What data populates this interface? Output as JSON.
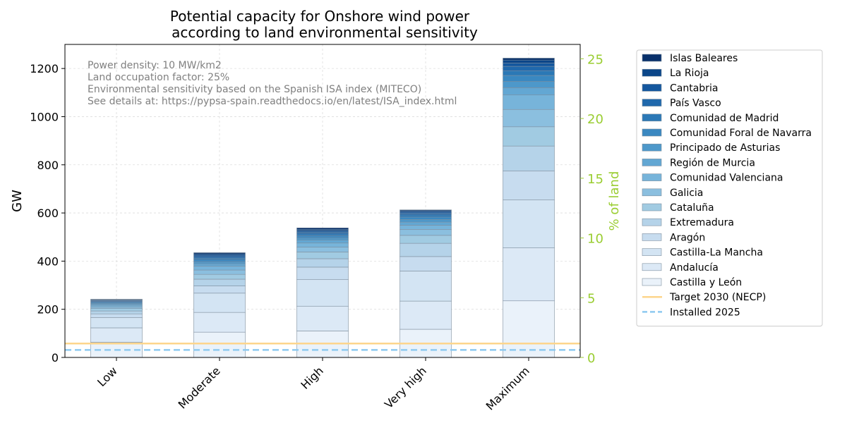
{
  "chart_data": {
    "type": "bar",
    "stacked": true,
    "title_line1": "Potential capacity for Onshore wind power",
    "title_line2": "according to land environmental sensitivity",
    "ylabel": "GW",
    "y2label": "% of land",
    "ylim": [
      0,
      1300
    ],
    "y2lim": [
      0,
      26.2
    ],
    "yticks": [
      "0",
      "200",
      "400",
      "600",
      "800",
      "1000",
      "1200"
    ],
    "y2ticks": [
      "0",
      "5",
      "10",
      "15",
      "20",
      "25"
    ],
    "grid": true,
    "legend_position": "outside-right",
    "categories": [
      "Low",
      "Moderate",
      "High",
      "Very high",
      "Maximum"
    ],
    "annotation": [
      "Power density: 10 MW/km2",
      "Land occupation factor: 25%",
      "Environmental sensitivity based on the Spanish ISA index (MITECO)",
      "See details at: https://pypsa-spain.readthedocs.io/en/latest/ISA_index.html"
    ],
    "series": [
      {
        "name": "Castilla y León",
        "color": "#eaf2fa",
        "values": [
          63,
          105,
          110,
          117,
          235
        ]
      },
      {
        "name": "Andalucía",
        "color": "#dce9f6",
        "values": [
          60,
          82,
          103,
          117,
          220
        ]
      },
      {
        "name": "Castilla-La Mancha",
        "color": "#d3e4f3",
        "values": [
          43,
          80,
          110,
          125,
          200
        ]
      },
      {
        "name": "Aragón",
        "color": "#c7dcef",
        "values": [
          15,
          30,
          52,
          60,
          120
        ]
      },
      {
        "name": "Extremadura",
        "color": "#b5d3e9",
        "values": [
          12,
          28,
          35,
          55,
          103
        ]
      },
      {
        "name": "Cataluña",
        "color": "#a1cbe2",
        "values": [
          10,
          20,
          28,
          33,
          80
        ]
      },
      {
        "name": "Galicia",
        "color": "#8bbfdf",
        "values": [
          7,
          18,
          20,
          25,
          72
        ]
      },
      {
        "name": "Comunidad Valenciana",
        "color": "#77b4da",
        "values": [
          6,
          16,
          17,
          17,
          60
        ]
      },
      {
        "name": "Región de Murcia",
        "color": "#63a7d3",
        "values": [
          5,
          10,
          12,
          13,
          30
        ]
      },
      {
        "name": "Principado de Asturias",
        "color": "#4d98ca",
        "values": [
          4,
          8,
          9,
          11,
          26
        ]
      },
      {
        "name": "Comunidad Foral de Navarra",
        "color": "#3a88c1",
        "values": [
          4,
          8,
          9,
          10,
          25
        ]
      },
      {
        "name": "Comunidad de Madrid",
        "color": "#2b78b6",
        "values": [
          3,
          7,
          8,
          9,
          20
        ]
      },
      {
        "name": "País Vasco",
        "color": "#1f68ac",
        "values": [
          3,
          6,
          7,
          7,
          18
        ]
      },
      {
        "name": "Cantabria",
        "color": "#14579e",
        "values": [
          3,
          6,
          6,
          6,
          14
        ]
      },
      {
        "name": "La Rioja",
        "color": "#0b4689",
        "values": [
          2,
          6,
          6,
          5,
          12
        ]
      },
      {
        "name": "Islas Baleares",
        "color": "#08306b",
        "values": [
          2,
          5,
          6,
          3,
          8
        ]
      }
    ],
    "lines": [
      {
        "name": "Target 2030 (NECP)",
        "value": 58,
        "color": "#fdd58c",
        "style": "solid"
      },
      {
        "name": "Installed 2025",
        "value": 31,
        "color": "#8ecaf0",
        "style": "dashed"
      }
    ],
    "colors": {
      "secondary_axis": "#9acd32",
      "bar_edge": "#7f8f9f",
      "annotation_text": "#808080",
      "grid": "#dddddd"
    }
  }
}
